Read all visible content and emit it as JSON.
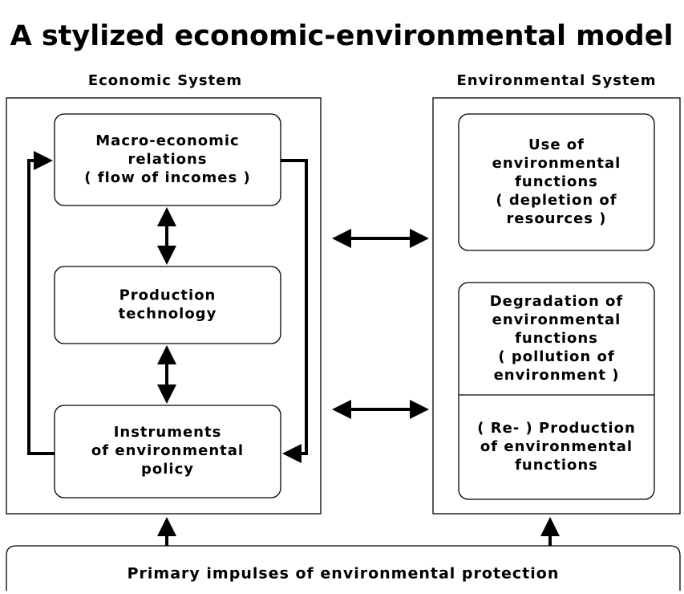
{
  "title": "A stylized economic-environmental model",
  "economic_system": {
    "label": "Economic System",
    "nodes": [
      {
        "lines": [
          "Macro-economic",
          "relations",
          "( flow of incomes )"
        ]
      },
      {
        "lines": [
          "Production",
          "technology"
        ]
      },
      {
        "lines": [
          "Instruments",
          "of environmental",
          "policy"
        ]
      }
    ]
  },
  "environmental_system": {
    "label": "Environmental System",
    "nodes": [
      {
        "lines": [
          "Use of",
          "environmental",
          "functions",
          "( depletion of",
          "resources )"
        ]
      },
      {
        "lines": [
          "Degradation of",
          "environmental",
          "functions",
          "( pollution of",
          "environment )"
        ]
      },
      {
        "lines": [
          "( Re- ) Production",
          "of environmental",
          "functions"
        ]
      }
    ]
  },
  "bottom": {
    "label": "Primary impulses of environmental protection"
  }
}
